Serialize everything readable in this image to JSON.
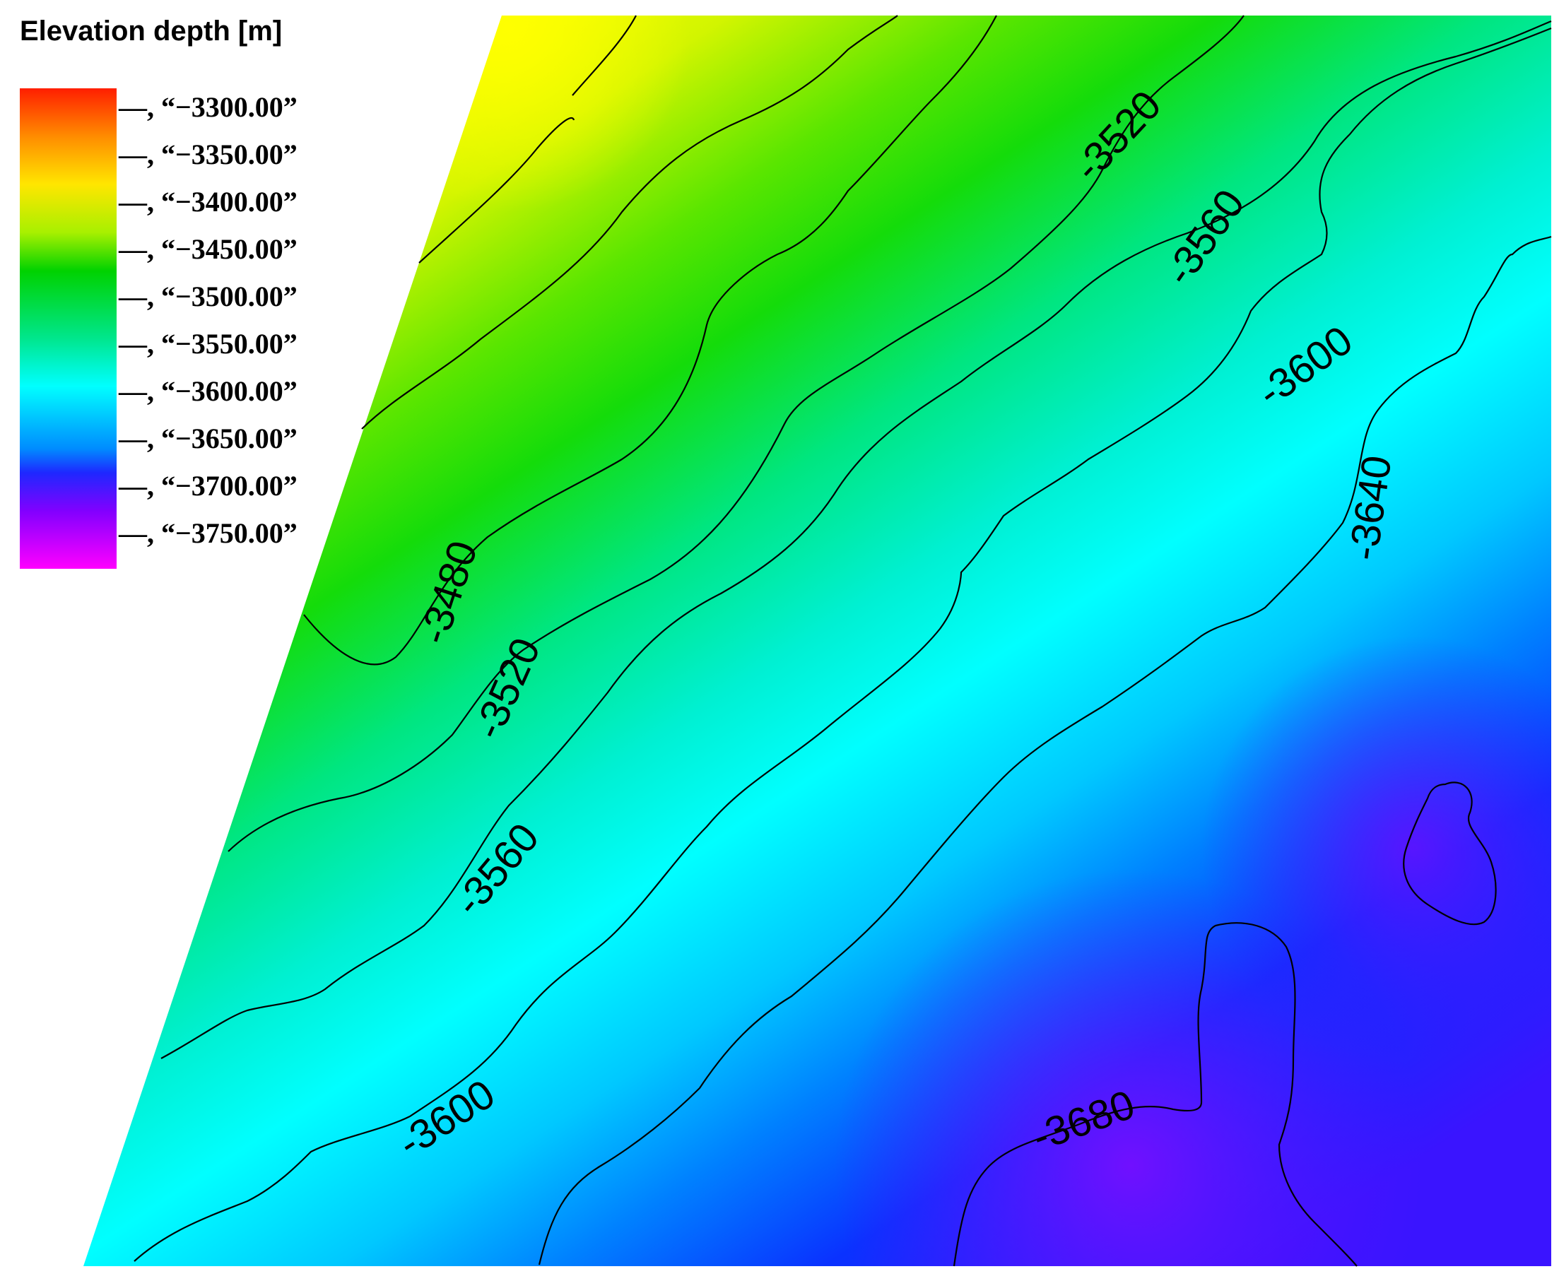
{
  "legend": {
    "title": "Elevation depth [m]",
    "ticks": [
      "—, “−3300.00”",
      "—, “−3350.00”",
      "—, “−3400.00”",
      "—, “−3450.00”",
      "—, “−3500.00”",
      "—, “−3550.00”",
      "—, “−3600.00”",
      "—, “−3650.00”",
      "—, “−3700.00”",
      "—, “−3750.00”"
    ],
    "colors": [
      "#ff1e00",
      "#ff8c00",
      "#ffe600",
      "#a8f000",
      "#00d200",
      "#00e68c",
      "#00ffff",
      "#008cff",
      "#1e28ff",
      "#8200ff",
      "#ff00ff"
    ]
  },
  "contour_labels": [
    "-3520",
    "-3560",
    "-3600",
    "-3640",
    "-3480",
    "-3520",
    "-3560",
    "-3600",
    "-3680"
  ]
}
